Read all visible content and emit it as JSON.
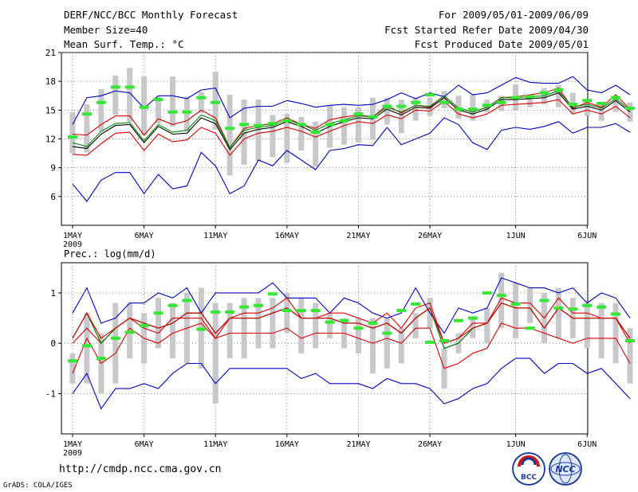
{
  "header": {
    "title": "DERF/NCC/BCC Monthly Forecast",
    "member_size": "Member Size=40",
    "variable_top": "Mean Surf. Temp.: °C",
    "period": "For 2009/05/01-2009/06/09",
    "fcst_started": "Fcst Started Refer Date 2009/04/30",
    "fcst_produced": "Fcst Produced Date 2009/05/01"
  },
  "footer": {
    "url": "http://cmdp.ncc.cma.gov.cn",
    "grads": "GrADS: COLA/IGES",
    "logo_left": "BCC",
    "logo_right": "NCC"
  },
  "colors": {
    "max_min_line": "#0000c8",
    "percentile_line": "#dc0000",
    "mean_line": "#000000",
    "median_line": "#008c00",
    "box": "#c8c8cc",
    "obs_marker": "#33e833",
    "grid": "#777777"
  },
  "chart_data": [
    {
      "type": "line",
      "title": "Mean Surf. Temp.: °C",
      "x_tick_labels": [
        "1MAY",
        "6MAY",
        "11MAY",
        "16MAY",
        "21MAY",
        "26MAY",
        "1JUN",
        "6JUN"
      ],
      "x_year_label": "2009",
      "x_tick_days": [
        1,
        6,
        11,
        16,
        21,
        26,
        32,
        37
      ],
      "days": 40,
      "ylim": [
        3,
        21
      ],
      "yticks": [
        6,
        9,
        12,
        15,
        18,
        21
      ],
      "series": [
        {
          "name": "max",
          "values": [
            13.5,
            16.3,
            16.5,
            17,
            16.8,
            15.2,
            16.5,
            16.5,
            16.2,
            17.1,
            17.3,
            14.2,
            15.2,
            15.4,
            15.4,
            16,
            15.7,
            15.3,
            15.5,
            15.6,
            15.5,
            15.6,
            16.1,
            16.8,
            16.2,
            16.8,
            16.4,
            17.6,
            16.6,
            16.8,
            17.6,
            18.4,
            17.9,
            17.8,
            17.8,
            18.5,
            17.1,
            16.8,
            17.6,
            16.6
          ]
        },
        {
          "name": "p90",
          "values": [
            12.5,
            12.4,
            13.5,
            14.4,
            14.4,
            12.4,
            14.1,
            13.5,
            13.9,
            15,
            14.2,
            11.1,
            13.1,
            13.4,
            13.6,
            14.2,
            13.5,
            13.1,
            14,
            14.3,
            14.5,
            14.3,
            15.5,
            14.7,
            15.5,
            15.3,
            16.5,
            15.2,
            14.8,
            15.3,
            16.3,
            16.4,
            16.6,
            16.8,
            17.3,
            15.2,
            15.8,
            15.3,
            16.6,
            15.1
          ]
        },
        {
          "name": "mean",
          "values": [
            11.2,
            11,
            12.5,
            13.4,
            13.5,
            11.6,
            13.3,
            12.5,
            12.6,
            14.2,
            13.6,
            10.9,
            12.6,
            13,
            13.2,
            13.8,
            13.3,
            12.6,
            13.3,
            13.8,
            14.2,
            14.1,
            15.1,
            14.5,
            15.3,
            15.2,
            16.3,
            15,
            14.6,
            15.1,
            16.1,
            16.1,
            16.2,
            16.3,
            16.8,
            15.1,
            15.4,
            15,
            16,
            14.8
          ]
        },
        {
          "name": "median",
          "values": [
            11.6,
            11.2,
            12.8,
            13.6,
            13.7,
            11.8,
            13.5,
            12.7,
            12.9,
            14.5,
            13.9,
            11.1,
            12.9,
            13.2,
            13.4,
            14,
            13.5,
            12.9,
            13.6,
            14,
            14.4,
            14.3,
            15.3,
            14.8,
            15.5,
            15.4,
            16.5,
            15.2,
            14.8,
            15.3,
            16.3,
            16.3,
            16.4,
            16.5,
            17,
            15.3,
            15.6,
            15.2,
            16.2,
            15
          ]
        },
        {
          "name": "p10",
          "values": [
            10.4,
            10.3,
            11.5,
            12.6,
            12.7,
            10.8,
            12.5,
            11.7,
            11.9,
            13.2,
            12.6,
            10.3,
            12,
            12.6,
            12.8,
            13.2,
            12.8,
            12.2,
            12.8,
            13.4,
            13.8,
            13.6,
            14.5,
            14.1,
            15,
            14.9,
            15.9,
            14.6,
            14.2,
            14.6,
            15.5,
            15.6,
            15.7,
            15.8,
            16.1,
            14.6,
            15,
            14.6,
            15.4,
            14.2
          ]
        },
        {
          "name": "min",
          "values": [
            7.3,
            5.5,
            7.7,
            8.5,
            8.5,
            6.3,
            8.3,
            6.8,
            7.1,
            10.6,
            9.2,
            6.3,
            7.1,
            9.8,
            9.2,
            10.8,
            9.8,
            8.8,
            10.8,
            11,
            11.4,
            11.3,
            13.2,
            11.4,
            12,
            12.6,
            14.2,
            13.5,
            11.6,
            10.9,
            12.9,
            13.2,
            13,
            13.3,
            13.8,
            12.6,
            13.2,
            13.2,
            13.6,
            12.7
          ]
        }
      ],
      "boxes_low": [
        10.5,
        10.6,
        12.8,
        14.5,
        13.8,
        12.4,
        13.6,
        13.3,
        12.8,
        14.7,
        13,
        8.2,
        9.3,
        9.7,
        10.1,
        9.5,
        10.8,
        9.1,
        11.1,
        11.4,
        11.6,
        11.9,
        13.5,
        12.6,
        13.9,
        14.4,
        15.2,
        14.1,
        13.9,
        14.8,
        14.9,
        15,
        15.3,
        15.6,
        15.3,
        14.6,
        14.4,
        13.9,
        14.8,
        13.8
      ],
      "boxes_high": [
        14.8,
        15.6,
        17.2,
        18.6,
        19.4,
        18.5,
        16.4,
        18.5,
        16.4,
        16.9,
        19,
        16.6,
        16.1,
        16.1,
        14.5,
        14.6,
        14.3,
        13.8,
        15.5,
        15.3,
        15.3,
        16.3,
        16.3,
        16.1,
        16.3,
        16.3,
        17,
        16.5,
        16.6,
        16.1,
        16.5,
        17.7,
        16.4,
        17.3,
        17.6,
        16.8,
        16,
        15.6,
        16.1,
        15.8
      ],
      "observed": [
        12.2,
        14.6,
        15.8,
        17.4,
        17.4,
        15.3,
        16.1,
        14.8,
        14.8,
        16.3,
        15.8,
        13.1,
        13.5,
        13.4,
        13.6,
        13.9,
        13.5,
        12.7,
        13.5,
        13.9,
        14.6,
        14.3,
        15.4,
        15.4,
        15.8,
        16.6,
        15.8,
        15.1,
        15.1,
        15.5,
        15.8,
        16.3,
        16.4,
        16.8,
        17.1,
        15.6,
        16,
        15.7,
        16.3,
        15.2
      ]
    },
    {
      "type": "line",
      "title": "Prec.: log(mm/d)",
      "x_tick_labels": [
        "1MAY",
        "6MAY",
        "11MAY",
        "16MAY",
        "21MAY",
        "26MAY",
        "1JUN",
        "6JUN"
      ],
      "x_year_label": "2009",
      "x_tick_days": [
        1,
        6,
        11,
        16,
        21,
        26,
        32,
        37
      ],
      "days": 40,
      "ylim": [
        -1.8,
        1.6
      ],
      "yticks": [
        -1,
        0,
        1
      ],
      "series": [
        {
          "name": "max",
          "values": [
            0.6,
            1.1,
            0.4,
            0.5,
            0.8,
            0.8,
            1,
            0.9,
            1.1,
            0.6,
            1,
            1,
            1,
            1,
            1.2,
            0.9,
            0.9,
            0.9,
            0.6,
            0.9,
            0.8,
            0.6,
            0.5,
            0.6,
            1.1,
            0.6,
            0.2,
            0.7,
            0.6,
            0.7,
            1.3,
            1.2,
            1.1,
            1.1,
            1,
            1.1,
            0.8,
            1,
            0.9,
            0.5
          ]
        },
        {
          "name": "p90",
          "values": [
            0,
            0.3,
            0,
            0.3,
            0.5,
            0.3,
            0.2,
            0.5,
            0.5,
            0.5,
            0.1,
            0.5,
            0.6,
            0.6,
            0.7,
            0.9,
            0.5,
            0.5,
            0.6,
            0.6,
            0.5,
            0.4,
            0.6,
            0.3,
            0.7,
            0.8,
            0,
            0.1,
            0.4,
            0.4,
            0.9,
            0.8,
            0.8,
            0.5,
            0.9,
            0.6,
            0.6,
            0.5,
            0.5,
            0
          ]
        },
        {
          "name": "mean",
          "values": [
            0.1,
            0.6,
            0,
            0.3,
            0.5,
            0.4,
            0.3,
            0.4,
            0.6,
            0.6,
            0.2,
            0.5,
            0.5,
            0.5,
            0.6,
            0.7,
            0.5,
            0.5,
            0.5,
            0.4,
            0.4,
            0.3,
            0.4,
            0.2,
            0.5,
            0.7,
            -0.1,
            0,
            0.3,
            0.4,
            0.8,
            0.7,
            0.7,
            0.3,
            0.7,
            0.5,
            0.5,
            0.5,
            0.5,
            0.1
          ]
        },
        {
          "name": "median",
          "values": [
            0.1,
            0.6,
            0,
            0.3,
            0.5,
            0.4,
            0.3,
            0.4,
            0.6,
            0.6,
            0.2,
            0.5,
            0.5,
            0.5,
            0.6,
            0.7,
            0.5,
            0.5,
            0.5,
            0.4,
            0.4,
            0.3,
            0.4,
            0.2,
            0.5,
            0.7,
            -0.1,
            0,
            0.3,
            0.4,
            0.8,
            0.7,
            0.7,
            0.3,
            0.7,
            0.5,
            0.5,
            0.5,
            0.5,
            0.1
          ]
        },
        {
          "name": "p10",
          "values": [
            -0.6,
            0.1,
            -0.4,
            -0.2,
            0.3,
            0.1,
            0,
            0.2,
            0.3,
            0.4,
            0.1,
            0.2,
            0.2,
            0.2,
            0.2,
            0.3,
            0.1,
            0.2,
            0.2,
            0.2,
            0.1,
            0,
            0.1,
            0,
            0.3,
            0.3,
            -0.5,
            -0.4,
            -0.2,
            -0.1,
            0.4,
            0.3,
            0.3,
            0.2,
            0.1,
            0,
            0.1,
            0.1,
            0.1,
            -0.4
          ]
        },
        {
          "name": "min",
          "values": [
            -1,
            -0.6,
            -1.3,
            -0.9,
            -0.9,
            -0.8,
            -0.9,
            -0.6,
            -0.4,
            -0.4,
            -0.8,
            -0.5,
            -0.5,
            -0.5,
            -0.5,
            -0.5,
            -0.7,
            -0.6,
            -0.8,
            -0.8,
            -0.8,
            -0.9,
            -0.7,
            -0.8,
            -0.8,
            -0.9,
            -1.2,
            -1.1,
            -0.9,
            -0.8,
            -0.5,
            -0.3,
            -0.3,
            -0.6,
            -0.4,
            -0.4,
            -0.6,
            -0.5,
            -0.8,
            -1.1
          ]
        },
        {
          "name": "upper_line",
          "values": [
            0.1,
            0.6,
            0.1,
            0.3,
            0.5,
            0.4,
            0.3,
            0.4,
            0.6,
            0.6,
            0.2,
            0.5,
            0.5,
            0.5,
            0.6,
            0.7,
            0.5,
            0.5,
            0.5,
            0.4,
            0.4,
            0.3,
            0.4,
            0.2,
            0.5,
            0.7,
            0,
            0.1,
            0.3,
            0.4,
            0.8,
            0.7,
            0.7,
            0.3,
            0.7,
            0.5,
            0.5,
            0.5,
            0.5,
            0.1
          ]
        }
      ],
      "boxes_low": [
        -0.8,
        -0.8,
        -1,
        -0.8,
        -0.3,
        -0.4,
        -0.1,
        -0.3,
        -0.4,
        -0.5,
        -1.2,
        -0.3,
        -0.3,
        -0.1,
        -0.1,
        0.2,
        -0.2,
        -0.1,
        0.1,
        -0.1,
        -0.2,
        -0.6,
        -0.5,
        -0.4,
        0.1,
        0.3,
        -0.9,
        -0.2,
        0.1,
        0,
        0.3,
        0.1,
        0.4,
        0,
        0.1,
        0.1,
        -0.1,
        -0.3,
        -0.4,
        -0.8
      ],
      "boxes_high": [
        -0.2,
        0.6,
        0.2,
        0.8,
        0.8,
        0.6,
        0.9,
        0.8,
        1,
        1.1,
        0.8,
        0.8,
        0.9,
        0.9,
        0.9,
        1,
        0.9,
        0.8,
        0.6,
        0.5,
        0.5,
        0.5,
        0.5,
        0.3,
        0.6,
        0.9,
        -0.1,
        0.2,
        0.5,
        0.7,
        1.4,
        1.2,
        1.1,
        1,
        1.1,
        0.9,
        0.8,
        0.8,
        0.8,
        0.3
      ],
      "observed": [
        -0.35,
        -0.05,
        -0.3,
        0.1,
        0.22,
        0.35,
        0.6,
        0.75,
        0.85,
        0.28,
        0.62,
        0.62,
        0.72,
        0.75,
        0.98,
        0.65,
        0.65,
        0.65,
        0.42,
        0.45,
        0.3,
        0.4,
        0.2,
        0.65,
        0.78,
        0.02,
        0.05,
        0.45,
        0.5,
        1,
        0.95,
        0.78,
        0.3,
        0.85,
        0.7,
        0.68,
        0.75,
        0.72,
        0.58,
        0.05
      ]
    }
  ]
}
